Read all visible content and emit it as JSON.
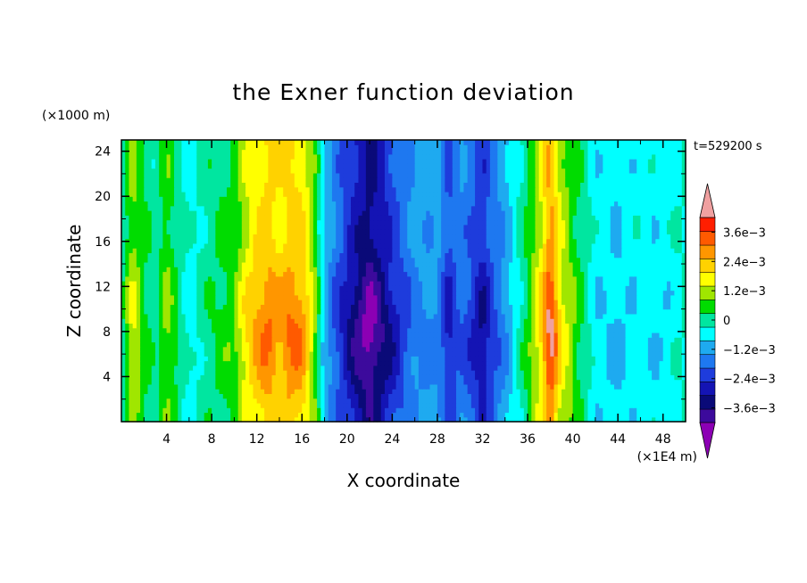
{
  "chart_data": {
    "type": "heatmap",
    "title": "the Exner function deviation",
    "xlabel": "X coordinate",
    "ylabel": "Z coordinate",
    "x_unit": "(×1E4 m)",
    "y_unit": "(×1000 m)",
    "time_label": "t=529200 s",
    "xlim": [
      0,
      50
    ],
    "ylim": [
      0,
      25
    ],
    "xticks": [
      4,
      8,
      12,
      16,
      20,
      24,
      28,
      32,
      36,
      40,
      44,
      48
    ],
    "yticks": [
      4,
      8,
      12,
      16,
      20,
      24
    ],
    "colorbar": {
      "levels": [
        -0.0042,
        -0.0036,
        -0.003,
        -0.0024,
        -0.0018,
        -0.0012,
        -0.0006,
        0,
        0.0006,
        0.0012,
        0.0018,
        0.0024,
        0.003,
        0.0036,
        0.0042
      ],
      "colors": [
        "#3c0a9c",
        "#0a0a78",
        "#1414b4",
        "#1e3cdc",
        "#1e78f0",
        "#1eaaf0",
        "#00ffff",
        "#00e6a0",
        "#00dc00",
        "#a0e600",
        "#ffff00",
        "#ffd200",
        "#ff9600",
        "#ff5a00",
        "#ff1e00"
      ],
      "under_color": "#8c00b4",
      "over_color": "#f0a0a0",
      "tick_labels": [
        "3.6e−3",
        "2.4e−3",
        "1.2e−3",
        "0",
        "−1.2e−3",
        "−2.4e−3",
        "−3.6e−3"
      ],
      "tick_values": [
        0.0036,
        0.0024,
        0.0012,
        0,
        -0.0012,
        -0.0024,
        -0.0036
      ]
    },
    "x_profile": {
      "x": [
        0,
        1,
        2,
        3,
        4,
        6,
        8,
        10,
        11,
        12,
        13,
        14,
        15,
        16,
        17,
        18,
        19,
        20,
        21,
        22,
        23,
        24,
        26,
        28,
        29,
        30,
        31,
        32,
        33,
        34,
        36,
        37,
        38,
        39,
        40,
        42,
        44,
        46,
        48,
        50
      ],
      "value": [
        0.0002,
        0.0014,
        0.0006,
        0.0002,
        0.001,
        -0.0002,
        0.0004,
        0.0008,
        0.0017,
        0.0022,
        0.0026,
        0.0022,
        0.0026,
        0.0024,
        0.0012,
        -0.0006,
        -0.0014,
        -0.002,
        -0.0027,
        -0.0032,
        -0.0026,
        -0.002,
        -0.001,
        -0.0009,
        -0.0019,
        -0.0012,
        -0.0016,
        -0.0022,
        -0.0014,
        -0.0009,
        0.0006,
        0.0016,
        0.0032,
        0.0016,
        0.0009,
        -0.0003,
        -0.0005,
        -0.0002,
        -0.0004,
        0.0001
      ]
    }
  }
}
